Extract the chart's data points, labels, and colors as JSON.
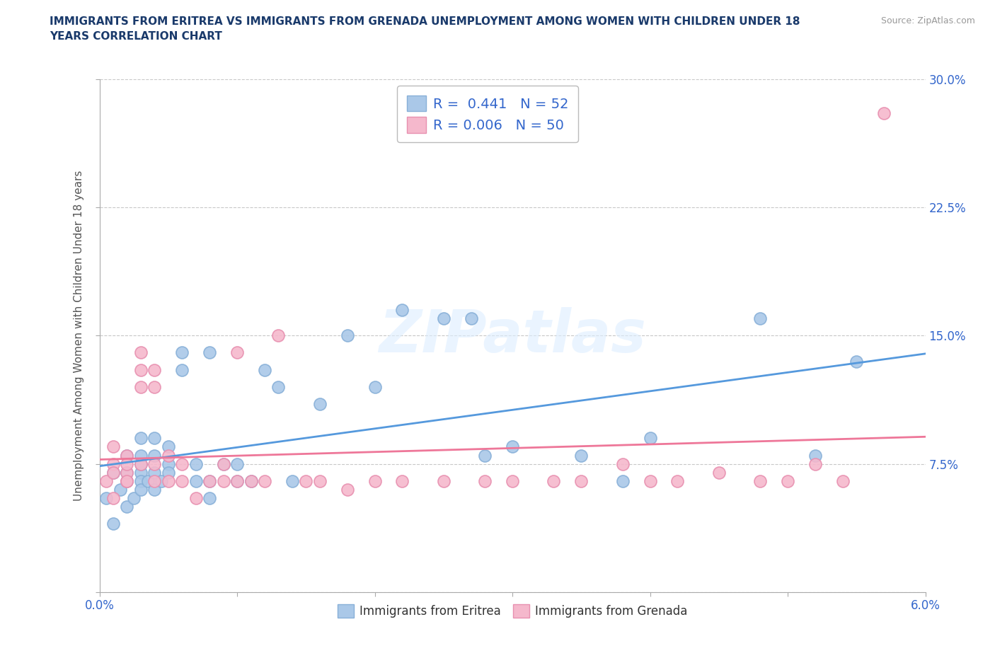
{
  "title": "IMMIGRANTS FROM ERITREA VS IMMIGRANTS FROM GRENADA UNEMPLOYMENT AMONG WOMEN WITH CHILDREN UNDER 18\nYEARS CORRELATION CHART",
  "source": "Source: ZipAtlas.com",
  "ylabel": "Unemployment Among Women with Children Under 18 years",
  "xlim": [
    0.0,
    0.06
  ],
  "ylim": [
    0.0,
    0.3
  ],
  "xticks": [
    0.0,
    0.01,
    0.02,
    0.03,
    0.04,
    0.05,
    0.06
  ],
  "yticks": [
    0.0,
    0.075,
    0.15,
    0.225,
    0.3
  ],
  "xticklabels": [
    "0.0%",
    "",
    "",
    "",
    "",
    "",
    "6.0%"
  ],
  "yticklabels": [
    "",
    "7.5%",
    "15.0%",
    "22.5%",
    "30.0%"
  ],
  "grid_color": "#c8c8c8",
  "background_color": "#ffffff",
  "watermark": "ZIPatlas",
  "legend_R1": "0.441",
  "legend_N1": "52",
  "legend_R2": "0.006",
  "legend_N2": "50",
  "color_eritrea": "#aac8e8",
  "color_grenada": "#f5b8cc",
  "edge_eritrea": "#88b0d8",
  "edge_grenada": "#e890b0",
  "trendline_eritrea_color": "#5599dd",
  "trendline_grenada_color": "#ee7799",
  "text_blue": "#3366cc",
  "label_color": "#333333",
  "eritrea_x": [
    0.0005,
    0.001,
    0.001,
    0.0015,
    0.002,
    0.002,
    0.002,
    0.002,
    0.0025,
    0.003,
    0.003,
    0.003,
    0.003,
    0.003,
    0.003,
    0.0035,
    0.004,
    0.004,
    0.004,
    0.004,
    0.0045,
    0.005,
    0.005,
    0.005,
    0.006,
    0.006,
    0.007,
    0.007,
    0.008,
    0.008,
    0.008,
    0.009,
    0.01,
    0.01,
    0.011,
    0.012,
    0.013,
    0.014,
    0.016,
    0.018,
    0.02,
    0.022,
    0.025,
    0.027,
    0.028,
    0.03,
    0.035,
    0.038,
    0.04,
    0.048,
    0.052,
    0.055
  ],
  "eritrea_y": [
    0.055,
    0.04,
    0.07,
    0.06,
    0.05,
    0.07,
    0.08,
    0.065,
    0.055,
    0.07,
    0.065,
    0.08,
    0.09,
    0.06,
    0.075,
    0.065,
    0.07,
    0.09,
    0.08,
    0.06,
    0.065,
    0.075,
    0.07,
    0.085,
    0.14,
    0.13,
    0.065,
    0.075,
    0.14,
    0.055,
    0.065,
    0.075,
    0.065,
    0.075,
    0.065,
    0.13,
    0.12,
    0.065,
    0.11,
    0.15,
    0.12,
    0.165,
    0.16,
    0.16,
    0.08,
    0.085,
    0.08,
    0.065,
    0.09,
    0.16,
    0.08,
    0.135
  ],
  "grenada_x": [
    0.0005,
    0.001,
    0.001,
    0.001,
    0.001,
    0.002,
    0.002,
    0.002,
    0.002,
    0.002,
    0.003,
    0.003,
    0.003,
    0.003,
    0.004,
    0.004,
    0.004,
    0.004,
    0.005,
    0.005,
    0.006,
    0.006,
    0.007,
    0.008,
    0.009,
    0.009,
    0.01,
    0.01,
    0.011,
    0.012,
    0.013,
    0.015,
    0.016,
    0.018,
    0.02,
    0.022,
    0.025,
    0.028,
    0.03,
    0.033,
    0.035,
    0.038,
    0.04,
    0.042,
    0.045,
    0.048,
    0.05,
    0.052,
    0.054,
    0.057
  ],
  "grenada_y": [
    0.065,
    0.075,
    0.055,
    0.07,
    0.085,
    0.065,
    0.07,
    0.08,
    0.075,
    0.065,
    0.14,
    0.12,
    0.075,
    0.13,
    0.065,
    0.075,
    0.13,
    0.12,
    0.065,
    0.08,
    0.065,
    0.075,
    0.055,
    0.065,
    0.065,
    0.075,
    0.14,
    0.065,
    0.065,
    0.065,
    0.15,
    0.065,
    0.065,
    0.06,
    0.065,
    0.065,
    0.065,
    0.065,
    0.065,
    0.065,
    0.065,
    0.075,
    0.065,
    0.065,
    0.07,
    0.065,
    0.065,
    0.075,
    0.065,
    0.28
  ]
}
